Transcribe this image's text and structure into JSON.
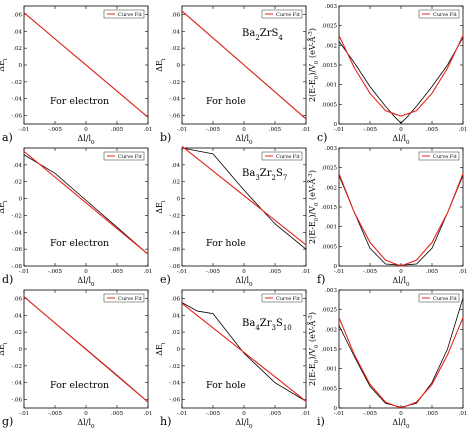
{
  "colors": {
    "calc": "#000000",
    "fit": "#e8231a"
  },
  "legend_label": "Curve Fit",
  "compounds": [
    "Ba2ZrS4",
    "Ba3Zr2S7",
    "Ba4Zr3S10"
  ],
  "chart_data": [
    {
      "type": "line",
      "panel": "a)",
      "annotation": "For electron",
      "compound": "",
      "xlabel": "Δl/l0",
      "ylabel": "ΔEi",
      "xlim": [
        -0.01,
        0.01
      ],
      "ylim": [
        -0.07,
        0.07
      ],
      "xticks": [
        -0.01,
        -0.005,
        0,
        0.005,
        0.01
      ],
      "yticks": [
        -0.06,
        -0.04,
        -0.02,
        0,
        0.02,
        0.04,
        0.06
      ],
      "series": [
        {
          "role": "calc",
          "x": [
            -0.01,
            -0.005,
            0,
            0.005,
            0.01
          ],
          "y": [
            0.062,
            0.031,
            0,
            -0.031,
            -0.062
          ]
        },
        {
          "role": "fit",
          "x": [
            -0.01,
            0.01
          ],
          "y": [
            0.062,
            -0.062
          ]
        }
      ]
    },
    {
      "type": "line",
      "panel": "b)",
      "annotation": "For hole",
      "compound": "Ba2ZrS4",
      "xlabel": "Δl/l0",
      "ylabel": "ΔEi",
      "xlim": [
        -0.01,
        0.01
      ],
      "ylim": [
        -0.07,
        0.07
      ],
      "xticks": [
        -0.01,
        -0.005,
        0,
        0.005,
        0.01
      ],
      "yticks": [
        -0.06,
        -0.04,
        -0.02,
        0,
        0.02,
        0.04,
        0.06
      ],
      "series": [
        {
          "role": "calc",
          "x": [
            -0.01,
            -0.005,
            0,
            0.005,
            0.01
          ],
          "y": [
            0.064,
            0.032,
            0,
            -0.032,
            -0.064
          ]
        },
        {
          "role": "fit",
          "x": [
            -0.01,
            0.01
          ],
          "y": [
            0.064,
            -0.064
          ]
        }
      ]
    },
    {
      "type": "line",
      "panel": "c)",
      "annotation": "",
      "compound": "",
      "xlabel": "Δl/l0",
      "ylabel": "2(E-E0)/V0 (eV-Å^(-3))",
      "xlim": [
        -0.01,
        0.01
      ],
      "ylim": [
        0,
        0.003
      ],
      "xticks": [
        -0.01,
        -0.005,
        0,
        0.005,
        0.01
      ],
      "yticks": [
        0,
        0.0005,
        0.001,
        0.0015,
        0.002,
        0.0025,
        0.003
      ],
      "series": [
        {
          "role": "calc",
          "x": [
            -0.01,
            -0.0075,
            -0.005,
            -0.0025,
            -0.001,
            0,
            0.001,
            0.0025,
            0.005,
            0.0075,
            0.01
          ],
          "y": [
            0.0021,
            0.00155,
            0.00095,
            0.00045,
            0.00018,
            2e-05,
            0.00018,
            0.00045,
            0.00095,
            0.0015,
            0.0022
          ]
        },
        {
          "role": "fit",
          "x": [
            -0.01,
            -0.0075,
            -0.005,
            -0.0025,
            0,
            0.0025,
            0.005,
            0.0075,
            0.01
          ],
          "y": [
            0.00225,
            0.00142,
            0.00078,
            0.00034,
            0.0002,
            0.00034,
            0.00078,
            0.00142,
            0.00225
          ]
        }
      ]
    },
    {
      "type": "line",
      "panel": "d)",
      "annotation": "For electron",
      "compound": "",
      "xlabel": "Δl/l0",
      "ylabel": "ΔEi",
      "xlim": [
        -0.01,
        0.01
      ],
      "ylim": [
        -0.08,
        0.06
      ],
      "xticks": [
        -0.01,
        -0.005,
        0,
        0.005,
        0.01
      ],
      "yticks": [
        -0.08,
        -0.06,
        -0.04,
        -0.02,
        0,
        0.02,
        0.04
      ],
      "series": [
        {
          "role": "calc",
          "x": [
            -0.01,
            -0.005,
            0,
            0.005,
            0.01
          ],
          "y": [
            0.052,
            0.03,
            -0.002,
            -0.034,
            -0.066
          ]
        },
        {
          "role": "fit",
          "x": [
            -0.01,
            0.01
          ],
          "y": [
            0.056,
            -0.066
          ]
        }
      ]
    },
    {
      "type": "line",
      "panel": "e)",
      "annotation": "For hole",
      "compound": "Ba3Zr2S7",
      "xlabel": "Δl/l0",
      "ylabel": "ΔEi",
      "xlim": [
        -0.01,
        0.01
      ],
      "ylim": [
        -0.08,
        0.06
      ],
      "xticks": [
        -0.01,
        -0.005,
        0,
        0.005,
        0.01
      ],
      "yticks": [
        -0.08,
        -0.06,
        -0.04,
        -0.02,
        0,
        0.02,
        0.04
      ],
      "series": [
        {
          "role": "calc",
          "x": [
            -0.01,
            -0.005,
            0,
            0.005,
            0.01
          ],
          "y": [
            0.06,
            0.053,
            0.01,
            -0.03,
            -0.06
          ]
        },
        {
          "role": "fit",
          "x": [
            -0.01,
            0.01
          ],
          "y": [
            0.062,
            -0.055
          ]
        }
      ]
    },
    {
      "type": "line",
      "panel": "f)",
      "annotation": "",
      "compound": "",
      "xlabel": "Δl/l0",
      "ylabel": "2(E-E0)/V0 (eV-Å^(-3))",
      "xlim": [
        -0.01,
        0.01
      ],
      "ylim": [
        0,
        0.003
      ],
      "xticks": [
        -0.01,
        -0.005,
        0,
        0.005,
        0.01
      ],
      "yticks": [
        0,
        0.0005,
        0.001,
        0.0015,
        0.002,
        0.0025,
        0.003
      ],
      "series": [
        {
          "role": "calc",
          "x": [
            -0.01,
            -0.0075,
            -0.005,
            -0.0025,
            0,
            0.0025,
            0.005,
            0.0075,
            0.01
          ],
          "y": [
            0.0023,
            0.00135,
            0.00045,
            5e-05,
            2e-05,
            5e-05,
            0.00045,
            0.00135,
            0.0023
          ]
        },
        {
          "role": "fit",
          "x": [
            -0.01,
            -0.0075,
            -0.005,
            -0.0025,
            0,
            0.0025,
            0.005,
            0.0075,
            0.01
          ],
          "y": [
            0.00235,
            0.00135,
            0.0006,
            0.00015,
            0.0,
            0.00015,
            0.0006,
            0.00135,
            0.00235
          ]
        }
      ]
    },
    {
      "type": "line",
      "panel": "g)",
      "annotation": "For electron",
      "compound": "",
      "xlabel": "Δl/l0",
      "ylabel": "ΔEi",
      "xlim": [
        -0.01,
        0.01
      ],
      "ylim": [
        -0.07,
        0.07
      ],
      "xticks": [
        -0.01,
        -0.005,
        0,
        0.005,
        0.01
      ],
      "yticks": [
        -0.06,
        -0.04,
        -0.02,
        0,
        0.02,
        0.04,
        0.06
      ],
      "series": [
        {
          "role": "calc",
          "x": [
            -0.01,
            -0.005,
            0,
            0.005,
            0.01
          ],
          "y": [
            0.062,
            0.031,
            0,
            -0.031,
            -0.063
          ]
        },
        {
          "role": "fit",
          "x": [
            -0.01,
            0.01
          ],
          "y": [
            0.062,
            -0.063
          ]
        }
      ]
    },
    {
      "type": "line",
      "panel": "h)",
      "annotation": "For hole",
      "compound": "Ba4Zr3S10",
      "xlabel": "Δl/l0",
      "ylabel": "ΔEi",
      "xlim": [
        -0.01,
        0.01
      ],
      "ylim": [
        -0.07,
        0.07
      ],
      "xticks": [
        -0.01,
        -0.005,
        0,
        0.005,
        0.01
      ],
      "yticks": [
        -0.06,
        -0.04,
        -0.02,
        0,
        0.02,
        0.04,
        0.06
      ],
      "series": [
        {
          "role": "calc",
          "x": [
            -0.01,
            -0.0075,
            -0.005,
            0,
            0.005,
            0.01
          ],
          "y": [
            0.055,
            0.045,
            0.042,
            -0.005,
            -0.04,
            -0.062
          ]
        },
        {
          "role": "fit",
          "x": [
            -0.01,
            0.01
          ],
          "y": [
            0.054,
            -0.062
          ]
        }
      ]
    },
    {
      "type": "line",
      "panel": "i)",
      "annotation": "",
      "compound": "",
      "xlabel": "Δl/l0",
      "ylabel": "2(E-E0)/V0 (eV-Å^(-3))",
      "xlim": [
        -0.01,
        0.01
      ],
      "ylim": [
        0,
        0.003
      ],
      "xticks": [
        -0.01,
        -0.005,
        0,
        0.005,
        0.01
      ],
      "yticks": [
        0,
        0.0005,
        0.001,
        0.0015,
        0.002,
        0.0025,
        0.003
      ],
      "series": [
        {
          "role": "calc",
          "x": [
            -0.01,
            -0.0075,
            -0.005,
            -0.0025,
            0,
            0.0025,
            0.005,
            0.0075,
            0.01
          ],
          "y": [
            0.0021,
            0.0013,
            0.00055,
            0.00012,
            2e-05,
            0.00012,
            0.00065,
            0.0015,
            0.0028
          ]
        },
        {
          "role": "fit",
          "x": [
            -0.01,
            -0.0075,
            -0.005,
            -0.0025,
            0,
            0.0025,
            0.005,
            0.0075,
            0.01
          ],
          "y": [
            0.0023,
            0.00135,
            0.0006,
            0.00015,
            0.0,
            0.00015,
            0.0006,
            0.00135,
            0.0023
          ]
        }
      ]
    }
  ]
}
